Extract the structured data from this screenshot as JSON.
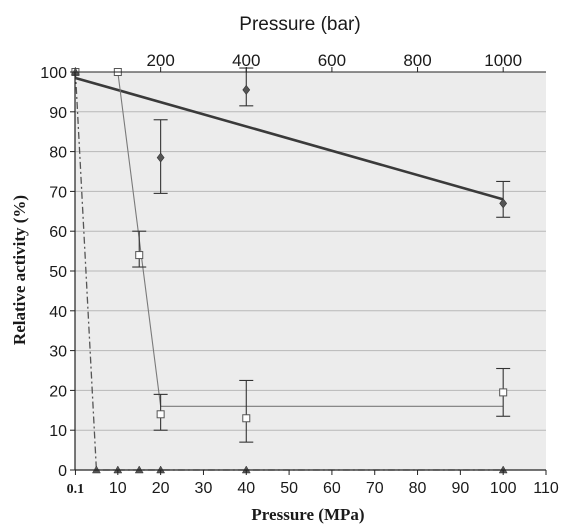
{
  "chart_data": {
    "type": "scatter",
    "xlabel": "Pressure (MPa)",
    "x2label": "Pressure (bar)",
    "ylabel": "Relative activity (%)",
    "xlim": [
      0,
      110
    ],
    "ylim": [
      0,
      100
    ],
    "grid": true,
    "legend": "none",
    "x_ticks": [
      0.1,
      10,
      20,
      30,
      40,
      50,
      60,
      70,
      80,
      90,
      100,
      110
    ],
    "x_tick_labels": [
      "0.1",
      "10",
      "20",
      "30",
      "40",
      "50",
      "60",
      "70",
      "80",
      "90",
      "100",
      "110"
    ],
    "y_ticks": [
      0,
      10,
      20,
      30,
      40,
      50,
      60,
      70,
      80,
      90,
      100
    ],
    "y_tick_labels": [
      "0",
      "10",
      "20",
      "30",
      "40",
      "50",
      "60",
      "70",
      "80",
      "90",
      "100"
    ],
    "x2_ticks": [
      20,
      40,
      60,
      80,
      100
    ],
    "x2_tick_labels": [
      "200",
      "400",
      "600",
      "800",
      "1000"
    ],
    "series": [
      {
        "marker": "diamond",
        "color": "#555555",
        "x": [
          0.1,
          20,
          40,
          100
        ],
        "y": [
          100,
          78.5,
          95.5,
          67
        ],
        "err_low": [
          100,
          69.5,
          91.5,
          63.5
        ],
        "err_high": [
          100,
          88,
          101,
          72.5
        ],
        "fit": {
          "x": [
            0.1,
            100
          ],
          "y": [
            98.5,
            68
          ],
          "style": "solid"
        }
      },
      {
        "marker": "square",
        "color": "#777777",
        "x": [
          0.1,
          10,
          15,
          20,
          40,
          100
        ],
        "y": [
          100,
          100,
          54,
          14,
          13,
          19.5
        ],
        "err_low": [
          100,
          100,
          51,
          10,
          7,
          13.5
        ],
        "err_high": [
          100,
          100,
          60,
          19,
          22.5,
          25.5
        ],
        "fit": {
          "x": [
            0.1,
            10,
            20,
            100
          ],
          "y": [
            100,
            100,
            16,
            16
          ],
          "style": "thin"
        }
      },
      {
        "marker": "triangle",
        "color": "#555555",
        "x": [
          0.1,
          5,
          10,
          15,
          20,
          40,
          100
        ],
        "y": [
          100,
          0,
          0,
          0,
          0,
          0,
          0
        ],
        "fit": {
          "x": [
            0.1,
            5,
            100
          ],
          "y": [
            100,
            0,
            0
          ],
          "style": "dashdot"
        }
      }
    ]
  }
}
